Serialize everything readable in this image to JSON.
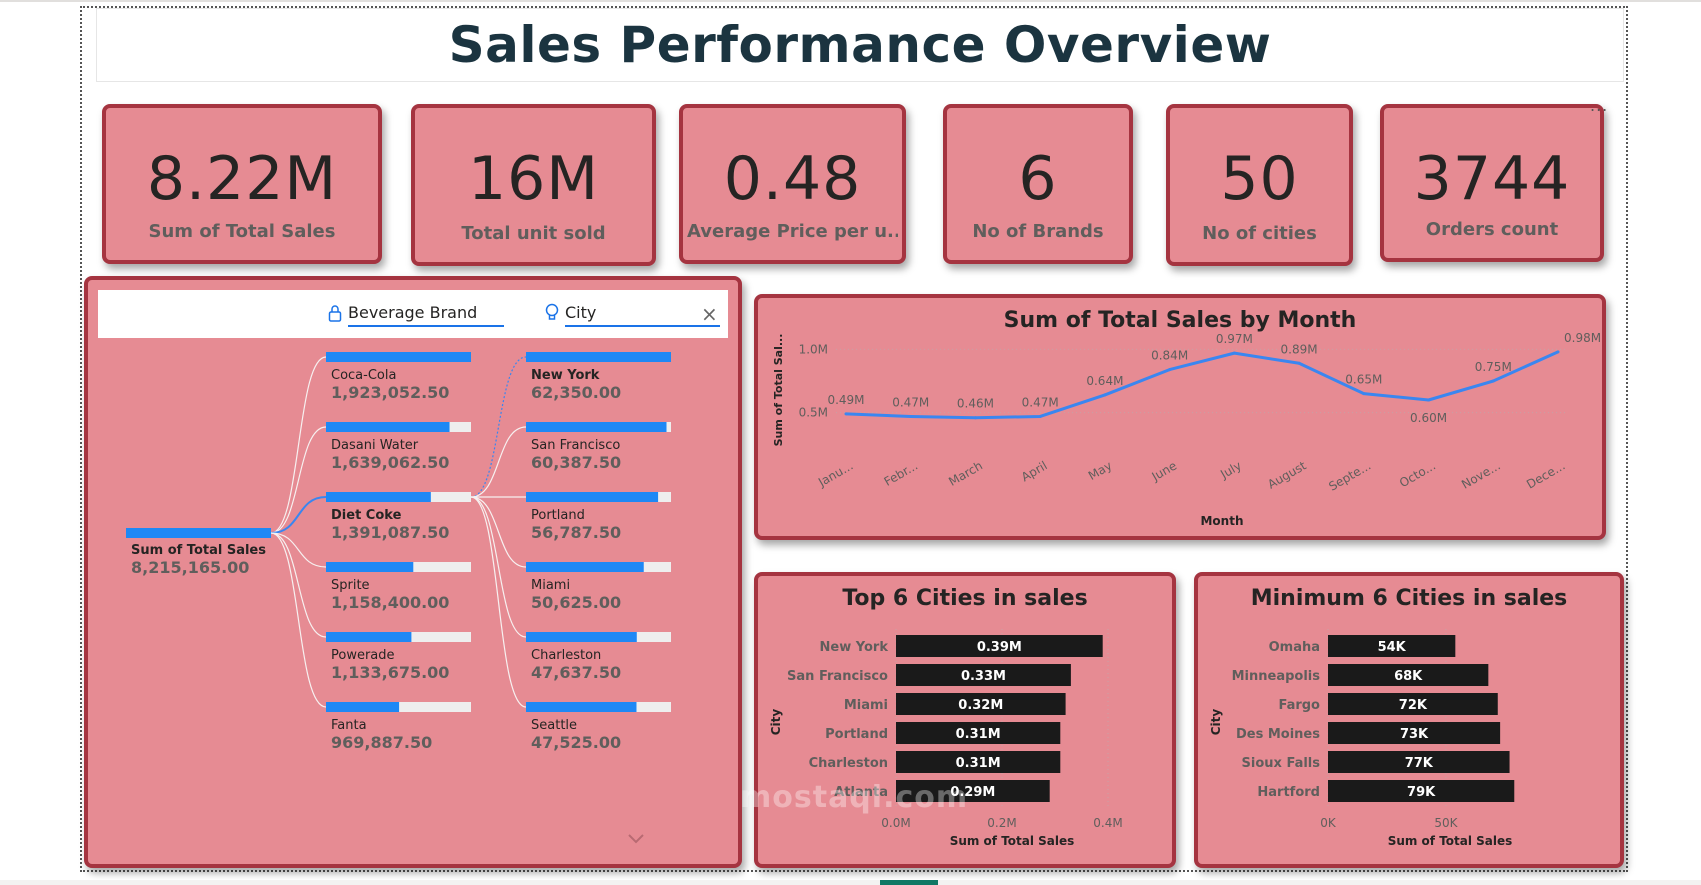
{
  "title": "Sales Performance Overview",
  "kpis": [
    {
      "value": "8.22M",
      "label": "Sum of Total Sales"
    },
    {
      "value": "16M",
      "label": "Total unit sold"
    },
    {
      "value": "0.48",
      "label": "Average Price per u..."
    },
    {
      "value": "6",
      "label": "No of Brands"
    },
    {
      "value": "50",
      "label": "No of cities"
    },
    {
      "value": "3744",
      "label": "Orders count"
    }
  ],
  "more_options": "...",
  "decomp": {
    "filters": {
      "brand": "Beverage Brand",
      "city": "City",
      "close": "×"
    },
    "root": {
      "label": "Sum of Total Sales",
      "value": "8,215,165.00"
    },
    "brands": [
      {
        "label": "Coca-Cola",
        "value": "1,923,052.50",
        "fill": 1.0
      },
      {
        "label": "Dasani Water",
        "value": "1,639,062.50",
        "fill": 0.852
      },
      {
        "label": "Diet Coke",
        "value": "1,391,087.50",
        "fill": 0.723
      },
      {
        "label": "Sprite",
        "value": "1,158,400.00",
        "fill": 0.602
      },
      {
        "label": "Powerade",
        "value": "1,133,675.00",
        "fill": 0.589
      },
      {
        "label": "Fanta",
        "value": "969,887.50",
        "fill": 0.504
      }
    ],
    "cities": [
      {
        "label": "New York",
        "value": "62,350.00",
        "fill": 1.0
      },
      {
        "label": "San Francisco",
        "value": "60,387.50",
        "fill": 0.969
      },
      {
        "label": "Portland",
        "value": "56,787.50",
        "fill": 0.911
      },
      {
        "label": "Miami",
        "value": "50,625.00",
        "fill": 0.812
      },
      {
        "label": "Charleston",
        "value": "47,637.50",
        "fill": 0.764
      },
      {
        "label": "Seattle",
        "value": "47,525.00",
        "fill": 0.762
      }
    ]
  },
  "chart_data": [
    {
      "type": "line",
      "title": "Sum of Total Sales by Month",
      "xlabel": "Month",
      "ylabel": "Sum of Total Sal...",
      "ylim": [
        0.3,
        1.05
      ],
      "yticks": [
        {
          "v": 0.5,
          "label": "0.5M"
        },
        {
          "v": 1.0,
          "label": "1.0M"
        }
      ],
      "categories": [
        "Janu...",
        "Febr...",
        "March",
        "April",
        "May",
        "June",
        "July",
        "August",
        "Septe...",
        "Octo...",
        "Nove...",
        "Dece..."
      ],
      "values": [
        0.49,
        0.47,
        0.46,
        0.47,
        0.64,
        0.84,
        0.97,
        0.89,
        0.65,
        0.6,
        0.75,
        0.98
      ],
      "data_labels": [
        "0.49M",
        "0.47M",
        "0.46M",
        "0.47M",
        "0.64M",
        "0.84M",
        "0.97M",
        "0.89M",
        "0.65M",
        "0.60M",
        "0.75M",
        "0.98M"
      ]
    },
    {
      "type": "bar",
      "orientation": "horizontal",
      "title": "Top 6 Cities in sales",
      "xlabel": "Sum of Total Sales",
      "ylabel": "City",
      "xlim": [
        0,
        0.4
      ],
      "xticks": [
        {
          "v": 0,
          "label": "0.0M"
        },
        {
          "v": 0.2,
          "label": "0.2M"
        },
        {
          "v": 0.4,
          "label": "0.4M"
        }
      ],
      "categories": [
        "New York",
        "San Francisco",
        "Miami",
        "Portland",
        "Charleston",
        "Atlanta"
      ],
      "values": [
        0.39,
        0.33,
        0.32,
        0.31,
        0.31,
        0.29
      ],
      "data_labels": [
        "0.39M",
        "0.33M",
        "0.32M",
        "0.31M",
        "0.31M",
        "0.29M"
      ]
    },
    {
      "type": "bar",
      "orientation": "horizontal",
      "title": "Minimum 6 Cities in sales",
      "xlabel": "Sum of Total Sales",
      "ylabel": "City",
      "xlim": [
        0,
        95
      ],
      "xticks": [
        {
          "v": 0,
          "label": "0K"
        },
        {
          "v": 50,
          "label": "50K"
        }
      ],
      "categories": [
        "Omaha",
        "Minneapolis",
        "Fargo",
        "Des Moines",
        "Sioux Falls",
        "Hartford"
      ],
      "values": [
        54,
        68,
        72,
        73,
        77,
        79
      ],
      "data_labels": [
        "54K",
        "68K",
        "72K",
        "73K",
        "77K",
        "79K"
      ]
    }
  ],
  "watermark": "mostaql.com",
  "colors": {
    "card_bg": "#e68b93",
    "card_border": "#a53440",
    "line": "#3a86f0",
    "bar": "#1a1a1a",
    "decomp_bar": "#1e88f5"
  }
}
